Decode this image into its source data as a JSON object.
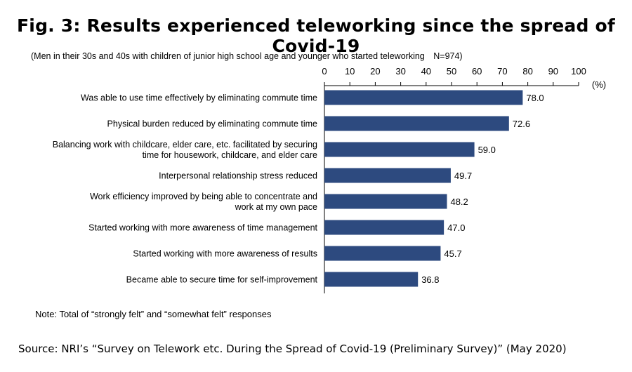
{
  "title": "Fig. 3: Results experienced teleworking since the spread of Covid-19",
  "subtitle": "(Men in their 30s and 40s with children of junior high school age and younger who started teleworking　N=974)",
  "note": "Note: Total of “strongly felt” and “somewhat felt” responses",
  "source": "Source: NRI’s “Survey on Telework etc. During the Spread of Covid-19 (Preliminary Survey)” (May 2020)",
  "chart_data": {
    "type": "bar",
    "orientation": "horizontal",
    "unit": "(%)",
    "xlim": [
      0,
      100
    ],
    "ticks": [
      "0",
      "10",
      "20",
      "30",
      "40",
      "50",
      "60",
      "70",
      "80",
      "90",
      "100"
    ],
    "bar_color": "#2d4a7f",
    "categories": [
      [
        "Was able to use time effectively by eliminating commute time"
      ],
      [
        "Physical burden reduced by eliminating commute time"
      ],
      [
        "Balancing work with childcare, elder care, etc. facilitated by securing",
        "time for housework, childcare, and elder care"
      ],
      [
        "Interpersonal relationship stress reduced"
      ],
      [
        "Work efficiency improved by being able to concentrate and",
        "work at my own pace"
      ],
      [
        "Started working with more awareness of time management"
      ],
      [
        "Started working with more awareness of results"
      ],
      [
        "Became able to secure time for self-improvement"
      ]
    ],
    "values": [
      78.0,
      72.6,
      59.0,
      49.7,
      48.2,
      47.0,
      45.7,
      36.8
    ],
    "value_labels": [
      "78.0",
      "72.6",
      "59.0",
      "49.7",
      "48.2",
      "47.0",
      "45.7",
      "36.8"
    ]
  }
}
